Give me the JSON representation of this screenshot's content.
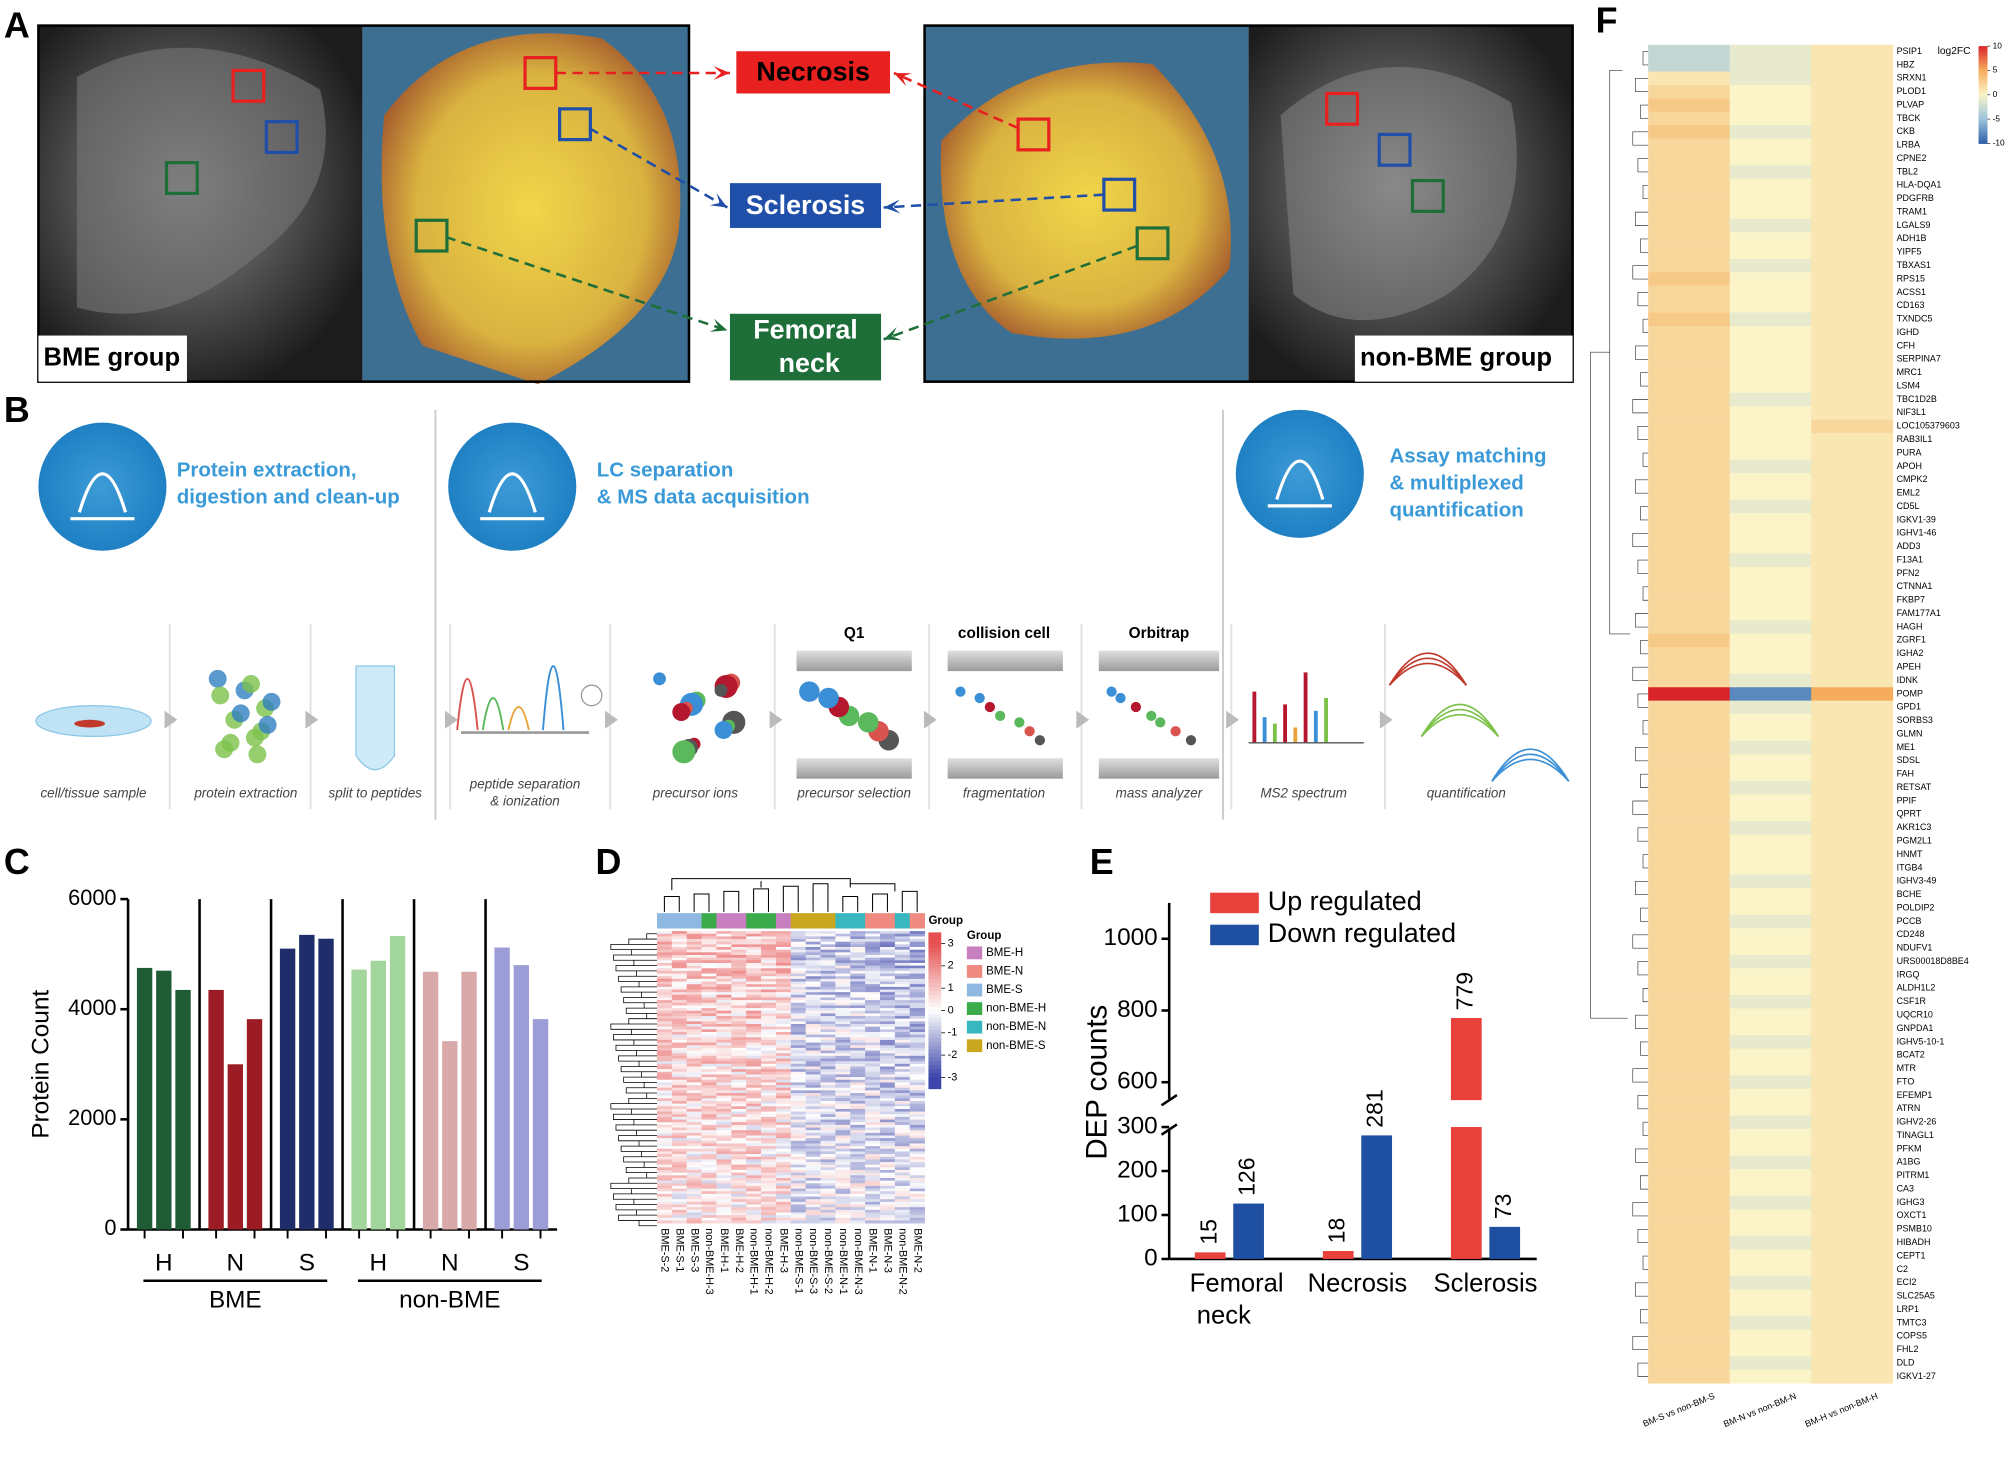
{
  "panel_labels": [
    "A",
    "B",
    "C",
    "D",
    "E",
    "F"
  ],
  "panel_a": {
    "left_label": "BME group",
    "right_label": "non-BME group",
    "regions": [
      {
        "name": "Necrosis",
        "color": "#e8201f"
      },
      {
        "name": "Sclerosis",
        "color": "#1f4fa8"
      },
      {
        "name": "Femoral neck",
        "color": "#1e6e3a"
      }
    ]
  },
  "panel_b": {
    "stages": [
      {
        "lines": [
          "Protein extraction,",
          "digestion and clean-up"
        ]
      },
      {
        "lines": [
          "LC separation",
          "& MS data acquisition"
        ]
      },
      {
        "lines": [
          "Assay matching",
          "& multiplexed",
          "quantification"
        ]
      }
    ],
    "steps": [
      {
        "lines": [
          "cell/tissue sample"
        ]
      },
      {
        "lines": [
          "protein extraction"
        ]
      },
      {
        "lines": [
          "split to peptides"
        ]
      },
      {
        "lines": [
          "peptide separation",
          "& ionization"
        ]
      },
      {
        "lines": [
          "precursor ions"
        ]
      },
      {
        "lines": [
          "precursor selection"
        ],
        "header": "Q1"
      },
      {
        "lines": [
          "fragmentation"
        ],
        "header": "collision cell"
      },
      {
        "lines": [
          "mass analyzer"
        ],
        "header": "Orbitrap"
      },
      {
        "lines": [
          "MS2 spectrum"
        ]
      },
      {
        "lines": [
          "quantification"
        ]
      }
    ]
  },
  "chart_data": [
    {
      "type": "grouped_bar",
      "ylabel": "Protein Count",
      "ylim": [
        0,
        6000
      ],
      "yticks": [
        0,
        2000,
        4000,
        6000
      ],
      "groups": [
        {
          "name": "BME",
          "categories": [
            "H",
            "N",
            "S"
          ],
          "colors": [
            "#1f5c36",
            "#9b1c24",
            "#1f2d6b"
          ],
          "values": [
            [
              4750,
              4700,
              4350
            ],
            [
              4350,
              3000,
              3820
            ],
            [
              5100,
              5350,
              5280
            ]
          ]
        },
        {
          "name": "non-BME",
          "categories": [
            "H",
            "N",
            "S"
          ],
          "colors": [
            "#a3d69c",
            "#d9a9a9",
            "#9c9cd6"
          ],
          "values": [
            [
              4720,
              4880,
              5330
            ],
            [
              4680,
              3420,
              4680
            ],
            [
              5120,
              4800,
              3820
            ]
          ]
        }
      ]
    },
    {
      "type": "clustered_heatmap",
      "annotation_label": "Group",
      "legend_title": "Group",
      "samples": [
        "BME-S-2",
        "BME-S-1",
        "BME-S-3",
        "non-BME-H-3",
        "BME-H-1",
        "BME-H-2",
        "non-BME-H-1",
        "non-BME-H-2",
        "BME-H-3",
        "non-BME-S-1",
        "non-BME-S-3",
        "non-BME-S-2",
        "non-BME-N-1",
        "non-BME-N-3",
        "BME-N-1",
        "BME-N-3",
        "non-BME-N-2",
        "BME-N-2"
      ],
      "groups": [
        {
          "name": "BME-H",
          "color": "#c77fc0"
        },
        {
          "name": "BME-N",
          "color": "#f08a80"
        },
        {
          "name": "BME-S",
          "color": "#8fb8e0"
        },
        {
          "name": "non-BME-H",
          "color": "#3aaa4a"
        },
        {
          "name": "non-BME-N",
          "color": "#39b7c0"
        },
        {
          "name": "non-BME-S",
          "color": "#c9a820"
        }
      ],
      "zlim": [
        -3.5,
        3.5
      ],
      "colorbar_ticks": [
        3,
        2,
        1,
        0,
        -1,
        -2,
        -3
      ]
    },
    {
      "type": "broken_bar",
      "ylabel": "DEP counts",
      "categories": [
        "Femoral neck",
        "Necrosis",
        "Sclerosis"
      ],
      "series": [
        {
          "name": "Up regulated",
          "color": "#e8413c",
          "values": [
            15,
            18,
            779
          ]
        },
        {
          "name": "Down regulated",
          "color": "#1f4fa0",
          "values": [
            126,
            281,
            73
          ]
        }
      ],
      "ylim": [
        0,
        1100
      ],
      "axis_break": [
        300,
        550
      ],
      "yticks": [
        0,
        100,
        200,
        300,
        600,
        800,
        1000
      ]
    },
    {
      "type": "heatmap",
      "colorbar_title": "log2FC",
      "zlim": [
        -10,
        10
      ],
      "colorbar_ticks": [
        10,
        5,
        0,
        -5,
        -10
      ],
      "columns": [
        "BM-S vs non-BM-S",
        "BM-N vs non-BM-N",
        "BM-H vs non-BM-H"
      ],
      "genes": [
        "PSIP1",
        "HBZ",
        "SRXN1",
        "PLOD1",
        "PLVAP",
        "TBCK",
        "CKB",
        "LRBA",
        "CPNE2",
        "TBL2",
        "HLA-DQA1",
        "PDGFRB",
        "TRAM1",
        "LGALS9",
        "ADH1B",
        "YIPF5",
        "TBXAS1",
        "RPS15",
        "ACSS1",
        "CD163",
        "TXNDC5",
        "IGHD",
        "CFH",
        "SERPINA7",
        "MRC1",
        "LSM4",
        "TBC1D2B",
        "NIF3L1",
        "LOC105379603",
        "RAB3IL1",
        "PURA",
        "APOH",
        "CMPK2",
        "EML2",
        "CD5L",
        "IGKV1-39",
        "IGHV1-46",
        "ADD3",
        "F13A1",
        "PFN2",
        "CTNNA1",
        "FKBP7",
        "FAM177A1",
        "HAGH",
        "ZGRF1",
        "IGHA2",
        "APEH",
        "IDNK",
        "POMP",
        "GPD1",
        "SORBS3",
        "GLMN",
        "ME1",
        "SDSL",
        "FAH",
        "RETSAT",
        "PPIF",
        "QPRT",
        "AKR1C3",
        "PGM2L1",
        "HNMT",
        "ITGB4",
        "IGHV3-49",
        "BCHE",
        "POLDIP2",
        "PCCB",
        "CD248",
        "NDUFV1",
        "URS00018D8BE4",
        "IRGQ",
        "ALDH1L2",
        "CSF1R",
        "UQCR10",
        "GNPDA1",
        "IGHV5-10-1",
        "BCAT2",
        "MTR",
        "FTO",
        "EFEMP1",
        "ATRN",
        "IGHV2-26",
        "TINAGL1",
        "PFKM",
        "A1BG",
        "PITRM1",
        "CA3",
        "IGHG3",
        "OXCT1",
        "PSMB10",
        "HIBADH",
        "CEPT1",
        "C2",
        "ECI2",
        "SLC25A5",
        "LRP1",
        "TMTC3",
        "COPS5",
        "FHL2",
        "DLD",
        "IGKV1-27"
      ],
      "values": [
        [
          -3,
          -1,
          1
        ],
        [
          -3,
          -1,
          1
        ],
        [
          1,
          -1,
          1
        ],
        [
          2,
          0,
          1
        ],
        [
          3,
          0,
          1
        ],
        [
          2,
          0,
          1
        ],
        [
          3,
          -1,
          1
        ],
        [
          2,
          0,
          1
        ],
        [
          2,
          0,
          1
        ],
        [
          2,
          -1,
          1
        ],
        [
          2,
          0,
          1
        ],
        [
          2,
          0,
          1
        ],
        [
          2,
          0,
          1
        ],
        [
          2,
          -1,
          1
        ],
        [
          2,
          0,
          1
        ],
        [
          2,
          0,
          1
        ],
        [
          2,
          -1,
          1
        ],
        [
          3,
          0,
          1
        ],
        [
          2,
          0,
          1
        ],
        [
          2,
          0,
          1
        ],
        [
          3,
          -1,
          1
        ],
        [
          2,
          0,
          1
        ],
        [
          2,
          0,
          1
        ],
        [
          2,
          0,
          1
        ],
        [
          2,
          0,
          1
        ],
        [
          2,
          0,
          1
        ],
        [
          2,
          -1,
          1
        ],
        [
          2,
          0,
          1
        ],
        [
          2,
          0,
          2
        ],
        [
          2,
          0,
          1
        ],
        [
          2,
          0,
          1
        ],
        [
          2,
          -1,
          1
        ],
        [
          2,
          0,
          1
        ],
        [
          2,
          0,
          1
        ],
        [
          2,
          -1,
          1
        ],
        [
          2,
          0,
          1
        ],
        [
          2,
          0,
          1
        ],
        [
          2,
          0,
          1
        ],
        [
          2,
          -1,
          1
        ],
        [
          2,
          0,
          1
        ],
        [
          2,
          0,
          1
        ],
        [
          2,
          0,
          1
        ],
        [
          2,
          0,
          1
        ],
        [
          2,
          -1,
          1
        ],
        [
          3,
          0,
          1
        ],
        [
          2,
          0,
          1
        ],
        [
          2,
          0,
          1
        ],
        [
          2,
          -1,
          1
        ],
        [
          10,
          -8,
          5
        ],
        [
          2,
          -1,
          1
        ],
        [
          2,
          0,
          1
        ],
        [
          2,
          0,
          1
        ],
        [
          2,
          -1,
          1
        ],
        [
          2,
          0,
          1
        ],
        [
          2,
          0,
          1
        ],
        [
          2,
          -1,
          1
        ],
        [
          2,
          0,
          1
        ],
        [
          2,
          0,
          1
        ],
        [
          2,
          -1,
          1
        ],
        [
          2,
          0,
          1
        ],
        [
          2,
          0,
          1
        ],
        [
          2,
          0,
          1
        ],
        [
          2,
          -1,
          1
        ],
        [
          2,
          0,
          1
        ],
        [
          2,
          0,
          1
        ],
        [
          2,
          -1,
          1
        ],
        [
          2,
          0,
          1
        ],
        [
          2,
          0,
          1
        ],
        [
          2,
          -1,
          1
        ],
        [
          2,
          0,
          1
        ],
        [
          2,
          0,
          1
        ],
        [
          2,
          -1,
          1
        ],
        [
          2,
          0,
          1
        ],
        [
          2,
          0,
          1
        ],
        [
          2,
          -1,
          1
        ],
        [
          2,
          0,
          1
        ],
        [
          2,
          0,
          1
        ],
        [
          2,
          -1,
          1
        ],
        [
          2,
          0,
          1
        ],
        [
          2,
          0,
          1
        ],
        [
          2,
          -1,
          1
        ],
        [
          2,
          0,
          1
        ],
        [
          2,
          0,
          1
        ],
        [
          2,
          -1,
          1
        ],
        [
          2,
          0,
          1
        ],
        [
          2,
          0,
          1
        ],
        [
          2,
          -1,
          1
        ],
        [
          2,
          0,
          1
        ],
        [
          2,
          0,
          1
        ],
        [
          2,
          -1,
          1
        ],
        [
          2,
          0,
          1
        ],
        [
          2,
          0,
          1
        ],
        [
          2,
          -1,
          1
        ],
        [
          2,
          0,
          1
        ],
        [
          2,
          0,
          1
        ],
        [
          2,
          -1,
          1
        ],
        [
          2,
          0,
          1
        ],
        [
          2,
          0,
          1
        ],
        [
          2,
          -1,
          1
        ],
        [
          2,
          0,
          1
        ]
      ]
    }
  ]
}
